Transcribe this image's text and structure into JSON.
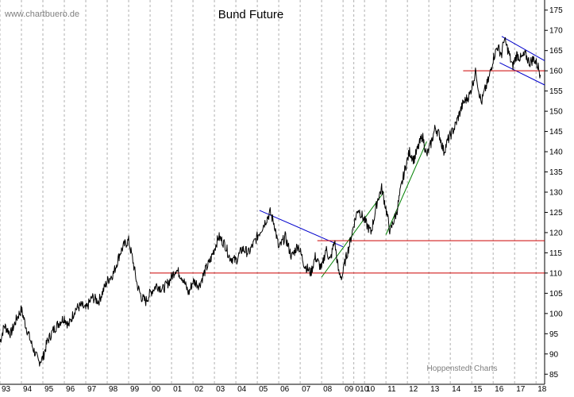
{
  "watermark": "www.chartbuero.de",
  "credit": "Hoppenstedt Charts",
  "chart_data": {
    "type": "line",
    "title": "Bund Future",
    "xlabel": "",
    "ylabel": "",
    "xlim": [
      1993.0,
      2018.4
    ],
    "ylim": [
      82.5,
      177.5
    ],
    "y_axis_side": "right",
    "grid": "vertical dashed",
    "y_ticks": [
      85,
      90,
      95,
      100,
      105,
      110,
      115,
      120,
      125,
      130,
      135,
      140,
      145,
      150,
      155,
      160,
      165,
      170,
      175
    ],
    "x_tick_labels": [
      "93",
      "94",
      "95",
      "96",
      "97",
      "98",
      "99",
      "00",
      "01",
      "02",
      "03",
      "04",
      "05",
      "06",
      "07",
      "08",
      "09",
      "010",
      "10",
      "11",
      "12",
      "13",
      "14",
      "15",
      "16",
      "17",
      "18"
    ],
    "x_tick_positions": [
      1993.0,
      1994.0,
      1995.0,
      1996.0,
      1997.0,
      1998.0,
      1999.0,
      2000.0,
      2001.0,
      2002.0,
      2003.0,
      2004.0,
      2005.0,
      2006.0,
      2007.0,
      2008.0,
      2009.0,
      2009.5,
      2010.0,
      2011.0,
      2012.0,
      2013.0,
      2014.0,
      2015.0,
      2016.0,
      2017.0,
      2018.0
    ],
    "series": [
      {
        "color": "#000000",
        "x": [
          1993.0,
          1993.2,
          1993.5,
          1993.8,
          1994.0,
          1994.2,
          1994.5,
          1994.8,
          1995.0,
          1995.2,
          1995.5,
          1995.8,
          1996.0,
          1996.2,
          1996.5,
          1996.8,
          1997.0,
          1997.3,
          1997.6,
          1998.0,
          1998.3,
          1998.6,
          1998.8,
          1999.0,
          1999.2,
          1999.4,
          1999.6,
          1999.8,
          2000.0,
          2000.3,
          2000.6,
          2000.9,
          2001.2,
          2001.5,
          2001.8,
          2002.0,
          2002.3,
          2002.6,
          2002.8,
          2003.0,
          2003.2,
          2003.5,
          2003.7,
          2004.0,
          2004.3,
          2004.6,
          2004.9,
          2005.2,
          2005.4,
          2005.6,
          2005.8,
          2006.0,
          2006.3,
          2006.6,
          2006.9,
          2007.2,
          2007.5,
          2007.7,
          2008.0,
          2008.2,
          2008.4,
          2008.6,
          2008.8,
          2008.95,
          2009.1,
          2009.3,
          2009.5,
          2009.7,
          2010.0,
          2010.3,
          2010.5,
          2010.6,
          2010.8,
          2011.0,
          2011.2,
          2011.3,
          2011.5,
          2011.7,
          2011.9,
          2012.1,
          2012.3,
          2012.5,
          2012.7,
          2012.9,
          2013.1,
          2013.3,
          2013.5,
          2013.7,
          2013.9,
          2014.2,
          2014.4,
          2014.6,
          2014.9,
          2015.1,
          2015.2,
          2015.3,
          2015.45,
          2015.6,
          2015.8,
          2016.0,
          2016.2,
          2016.4,
          2016.5,
          2016.7,
          2016.9,
          2017.1,
          2017.3,
          2017.5,
          2017.7,
          2017.9,
          2018.1,
          2018.2
        ],
        "y": [
          93,
          97,
          95,
          99,
          101,
          97,
          92,
          88,
          89,
          93,
          96,
          98,
          99,
          97,
          101,
          102,
          101,
          104,
          103,
          108,
          110,
          115,
          117,
          118,
          113,
          107,
          104,
          103,
          105,
          107,
          106,
          108,
          111,
          109,
          105,
          108,
          107,
          111,
          113,
          116,
          119,
          117,
          114,
          113,
          116,
          115,
          118,
          121,
          123,
          125,
          122,
          116,
          119,
          114,
          117,
          112,
          110,
          114,
          111,
          116,
          113,
          118,
          110,
          109,
          113,
          117,
          122,
          126,
          123,
          120,
          125,
          128,
          131,
          126,
          120,
          122,
          125,
          131,
          136,
          140,
          138,
          141,
          144,
          139,
          142,
          146,
          144,
          140,
          143,
          146,
          149,
          152,
          154,
          158,
          160,
          156,
          152,
          155,
          158,
          163,
          166,
          164,
          168,
          165,
          161,
          164,
          163,
          164,
          162,
          163,
          161,
          159
        ]
      }
    ],
    "annotations": [
      {
        "type": "trendline",
        "color": "#0000cc",
        "x": [
          2005.1,
          2009.0
        ],
        "y": [
          125.5,
          116.5
        ]
      },
      {
        "type": "trendline",
        "color": "#0000cc",
        "x": [
          2016.4,
          2018.4
        ],
        "y": [
          168.5,
          162.5
        ]
      },
      {
        "type": "trendline",
        "color": "#0000cc",
        "x": [
          2016.3,
          2018.4
        ],
        "y": [
          162.0,
          156.5
        ]
      },
      {
        "type": "trendline",
        "color": "#008000",
        "x": [
          2008.0,
          2010.9
        ],
        "y": [
          109.0,
          130.0
        ]
      },
      {
        "type": "trendline",
        "color": "#008000",
        "x": [
          2011.0,
          2012.9
        ],
        "y": [
          119.5,
          142.5
        ]
      },
      {
        "type": "hline",
        "color": "#cc0000",
        "x": [
          2000.0,
          2018.4
        ],
        "y": [
          110.0,
          110.0
        ]
      },
      {
        "type": "hline",
        "color": "#cc0000",
        "x": [
          2007.8,
          2018.4
        ],
        "y": [
          118.0,
          118.0
        ]
      },
      {
        "type": "hline",
        "color": "#cc0000",
        "x": [
          2014.6,
          2018.4
        ],
        "y": [
          160.0,
          160.0
        ]
      }
    ]
  }
}
